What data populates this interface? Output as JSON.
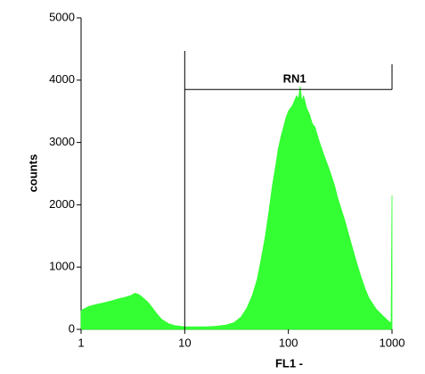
{
  "chart_data": {
    "type": "area",
    "x_label": "FL1 -",
    "y_label": "counts",
    "xscale": "log",
    "xlim": [
      1,
      1000
    ],
    "ylim": [
      0,
      5000
    ],
    "xticks": [
      1,
      10,
      100,
      1000
    ],
    "yticks": [
      0,
      1000,
      2000,
      3000,
      4000,
      5000
    ],
    "color": "#33ff33",
    "x": [
      1,
      1.1,
      1.2,
      1.4,
      1.6,
      1.8,
      2,
      2.3,
      2.6,
      3,
      3.3,
      3.6,
      4,
      4.5,
      5,
      5.5,
      6,
      7,
      8,
      10,
      13,
      16,
      20,
      25,
      30,
      35,
      40,
      45,
      50,
      55,
      60,
      65,
      70,
      75,
      80,
      85,
      90,
      95,
      100,
      110,
      120,
      125,
      130,
      135,
      140,
      150,
      160,
      170,
      180,
      200,
      220,
      250,
      280,
      300,
      350,
      400,
      450,
      500,
      550,
      600,
      700,
      800,
      900,
      980,
      1000,
      1000
    ],
    "values": [
      300,
      340,
      370,
      400,
      420,
      440,
      460,
      490,
      510,
      540,
      580,
      560,
      500,
      420,
      320,
      230,
      160,
      90,
      60,
      40,
      40,
      40,
      50,
      70,
      110,
      200,
      350,
      550,
      800,
      1150,
      1500,
      1900,
      2300,
      2600,
      2900,
      3100,
      3250,
      3400,
      3500,
      3600,
      3750,
      3700,
      3900,
      3650,
      3750,
      3550,
      3450,
      3300,
      3250,
      3000,
      2800,
      2550,
      2300,
      2100,
      1750,
      1400,
      1100,
      850,
      650,
      500,
      330,
      230,
      150,
      100,
      2150,
      0
    ],
    "marker": {
      "label": "RN1",
      "range": [
        10,
        1000
      ],
      "level": 3850
    }
  }
}
